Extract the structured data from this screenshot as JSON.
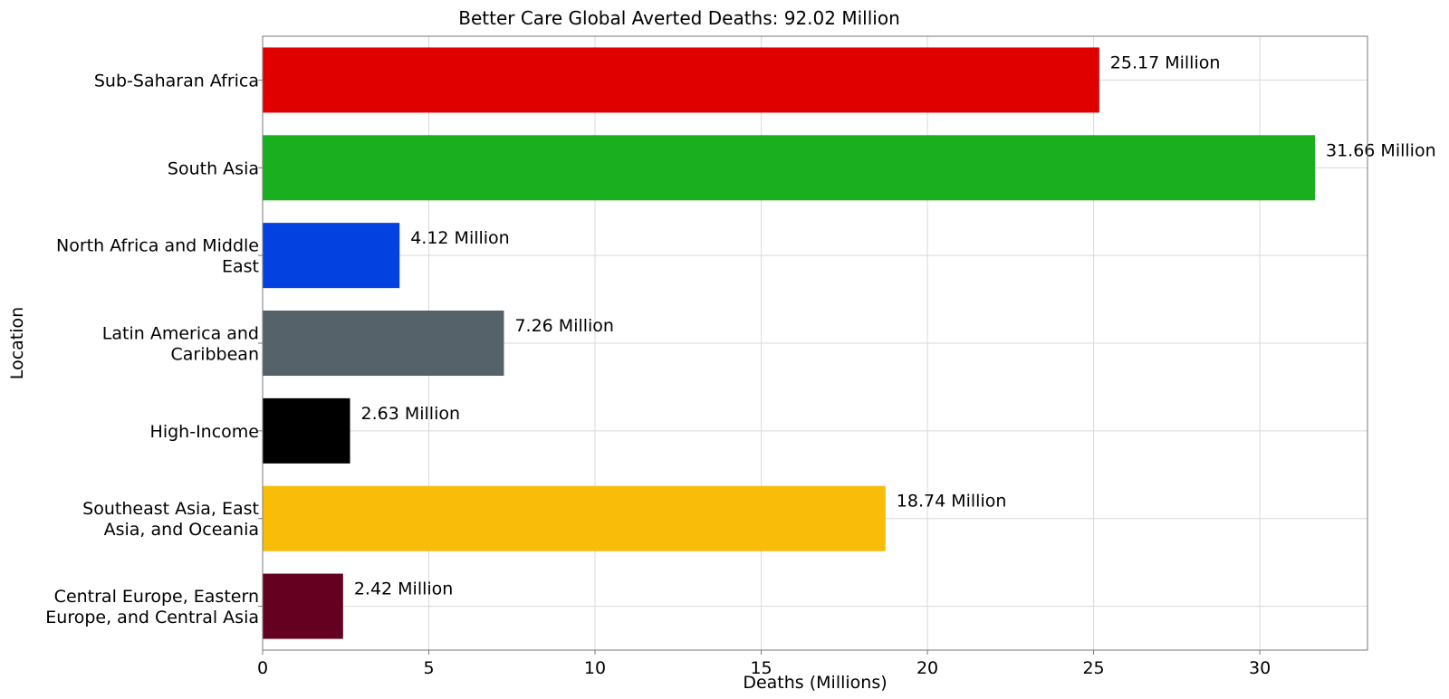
{
  "chart_data": {
    "type": "bar",
    "orientation": "horizontal",
    "title": "Better Care Global  Averted Deaths: 92.02 Million",
    "xlabel": "Deaths (Millions)",
    "ylabel": "Location",
    "xlim": [
      0,
      33.24
    ],
    "xticks": [
      0,
      5,
      10,
      15,
      20,
      25,
      30
    ],
    "grid": true,
    "categories": [
      [
        "Sub-Saharan Africa"
      ],
      [
        "South Asia"
      ],
      [
        "North Africa and Middle",
        "East"
      ],
      [
        "Latin America and",
        "Caribbean"
      ],
      [
        "High-Income"
      ],
      [
        "Southeast Asia, East",
        "Asia, and Oceania"
      ],
      [
        "Central Europe, Eastern",
        "Europe, and Central Asia"
      ]
    ],
    "values": [
      25.17,
      31.66,
      4.12,
      7.26,
      2.63,
      18.74,
      2.42
    ],
    "value_labels": [
      "25.17 Million",
      "31.66 Million",
      "4.12 Million",
      "7.26 Million",
      "2.63 Million",
      "18.74 Million",
      "2.42 Million"
    ],
    "colors": [
      "#e00000",
      "#1aaf1f",
      "#0342e0",
      "#56626a",
      "#000000",
      "#f9bc09",
      "#650021"
    ]
  }
}
